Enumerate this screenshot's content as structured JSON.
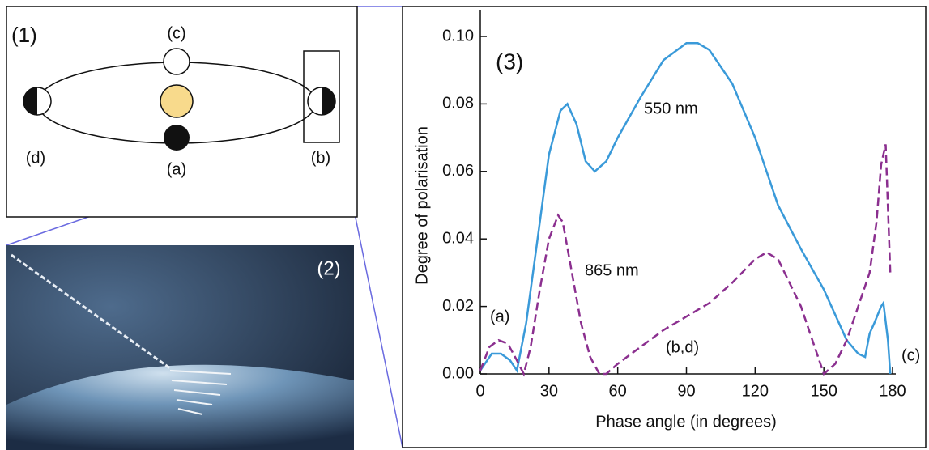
{
  "diagram": {
    "title": "(1)",
    "labels": [
      "(c)",
      "(d)",
      "(a)",
      "(b)"
    ]
  },
  "image": {
    "label": "(2)"
  },
  "chart_data": {
    "type": "line",
    "title": "(3)",
    "xlabel": "Phase angle (in degrees)",
    "ylabel": "Degree of polarisation",
    "xlim": [
      0,
      180
    ],
    "ylim": [
      0,
      0.1
    ],
    "xticks": [
      0,
      30,
      60,
      90,
      120,
      150,
      180
    ],
    "yticks": [
      {
        "value": 0,
        "label": "0.00"
      },
      {
        "value": 0.02,
        "label": "0.02"
      },
      {
        "value": 0.04,
        "label": "0.04"
      },
      {
        "value": 0.06,
        "label": "0.06"
      },
      {
        "value": 0.08,
        "label": "0.08"
      },
      {
        "value": 0.1,
        "label": "0.10"
      }
    ],
    "series": [
      {
        "name": "550 nm",
        "color": "#3a9ad9",
        "dash": "solid",
        "x": [
          0,
          5,
          9,
          13,
          16,
          20,
          25,
          30,
          35,
          38,
          42,
          46,
          50,
          55,
          60,
          70,
          80,
          90,
          95,
          100,
          110,
          120,
          130,
          140,
          150,
          160,
          165,
          168,
          170,
          172,
          175,
          176,
          178,
          179
        ],
        "values": [
          0.001,
          0.006,
          0.006,
          0.004,
          0.001,
          0.015,
          0.04,
          0.065,
          0.078,
          0.08,
          0.074,
          0.063,
          0.06,
          0.063,
          0.07,
          0.082,
          0.093,
          0.098,
          0.098,
          0.096,
          0.086,
          0.07,
          0.05,
          0.037,
          0.025,
          0.01,
          0.006,
          0.005,
          0.012,
          0.015,
          0.02,
          0.021,
          0.01,
          0
        ]
      },
      {
        "name": "865 nm",
        "color": "#8b2f8f",
        "dash": "dashed",
        "x": [
          0,
          4,
          8,
          12,
          16,
          19,
          22,
          26,
          30,
          34,
          36,
          40,
          44,
          48,
          52,
          55,
          60,
          70,
          80,
          90,
          100,
          110,
          120,
          125,
          130,
          140,
          145,
          150,
          155,
          160,
          165,
          170,
          173,
          175,
          177,
          179
        ],
        "values": [
          0.001,
          0.008,
          0.01,
          0.009,
          0.004,
          0,
          0.008,
          0.025,
          0.04,
          0.047,
          0.045,
          0.03,
          0.015,
          0.005,
          0,
          0,
          0.003,
          0.008,
          0.013,
          0.017,
          0.021,
          0.027,
          0.034,
          0.036,
          0.034,
          0.02,
          0.01,
          0,
          0.003,
          0.01,
          0.02,
          0.03,
          0.045,
          0.062,
          0.068,
          0.03
        ]
      }
    ],
    "annotations": [
      "(a)",
      "(b,d)",
      "(c)"
    ]
  }
}
